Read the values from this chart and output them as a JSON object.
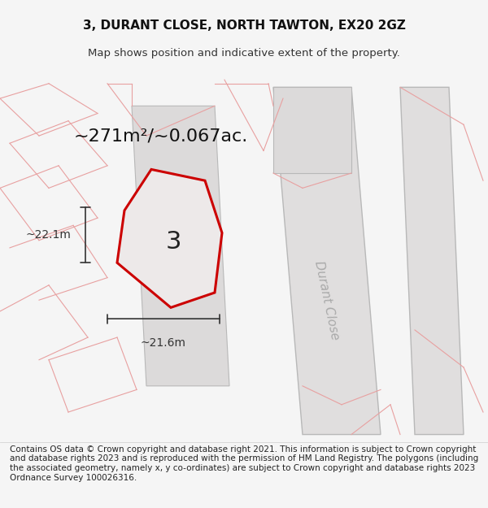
{
  "title": "3, DURANT CLOSE, NORTH TAWTON, EX20 2GZ",
  "subtitle": "Map shows position and indicative extent of the property.",
  "area_label": "~271m²/~0.067ac.",
  "plot_number": "3",
  "dim_height": "~22.1m",
  "dim_width": "~21.6m",
  "street_label": "Durant Close",
  "footer": "Contains OS data © Crown copyright and database right 2021. This information is subject to Crown copyright and database rights 2023 and is reproduced with the permission of HM Land Registry. The polygons (including the associated geometry, namely x, y co-ordinates) are subject to Crown copyright and database rights 2023 Ordnance Survey 100026316.",
  "bg_color": "#f5f5f5",
  "map_bg": "#f0eeee",
  "plot_fill": "#e8e5e5",
  "plot_edge_color": "#cc0000",
  "road_fill": "#dcdcdc",
  "road_stroke": "#b0b0b0",
  "building_stroke": "#c8a8a8",
  "dim_color": "#333333",
  "title_fontsize": 11,
  "subtitle_fontsize": 9.5,
  "area_fontsize": 16,
  "plot_num_fontsize": 22,
  "dim_fontsize": 10,
  "street_fontsize": 11,
  "footer_fontsize": 7.5
}
